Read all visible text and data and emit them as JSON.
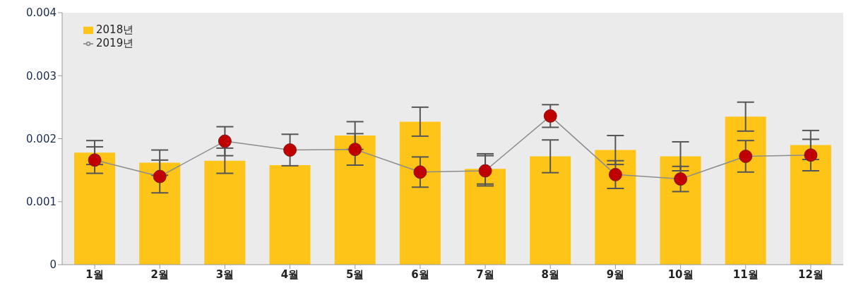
{
  "chart_data": {
    "type": "bar",
    "categories": [
      "1월",
      "2월",
      "3월",
      "4월",
      "5월",
      "6월",
      "7월",
      "8월",
      "9월",
      "10월",
      "11월",
      "12월"
    ],
    "series": [
      {
        "name": "2018년",
        "color": "#fec418",
        "values": [
          0.00178,
          0.00162,
          0.00165,
          0.00158,
          0.00205,
          0.00227,
          0.00152,
          0.00172,
          0.00182,
          0.00172,
          0.00235,
          0.0019
        ],
        "errors": [
          0.00019,
          0.0002,
          0.0002,
          null,
          0.00022,
          0.00023,
          0.00024,
          0.00026,
          0.00023,
          0.00023,
          0.00023,
          0.00023
        ]
      },
      {
        "name": "2019년",
        "type": "line",
        "color": "#c00000",
        "values": [
          0.00166,
          0.0014,
          0.00196,
          0.00182,
          0.00183,
          0.00147,
          0.00149,
          0.00236,
          0.00143,
          0.00136,
          0.00172,
          0.00174
        ],
        "errors": [
          0.00021,
          0.00026,
          0.00023,
          0.00025,
          0.00025,
          0.00024,
          0.00024,
          0.00018,
          0.00022,
          0.0002,
          0.00025,
          0.00025
        ]
      }
    ],
    "ylim": [
      0,
      0.004
    ],
    "yticks": [
      0,
      0.001,
      0.002,
      0.003,
      0.004
    ],
    "grid": false,
    "legend": "top left",
    "marker": "circle",
    "line_style": "solid"
  }
}
